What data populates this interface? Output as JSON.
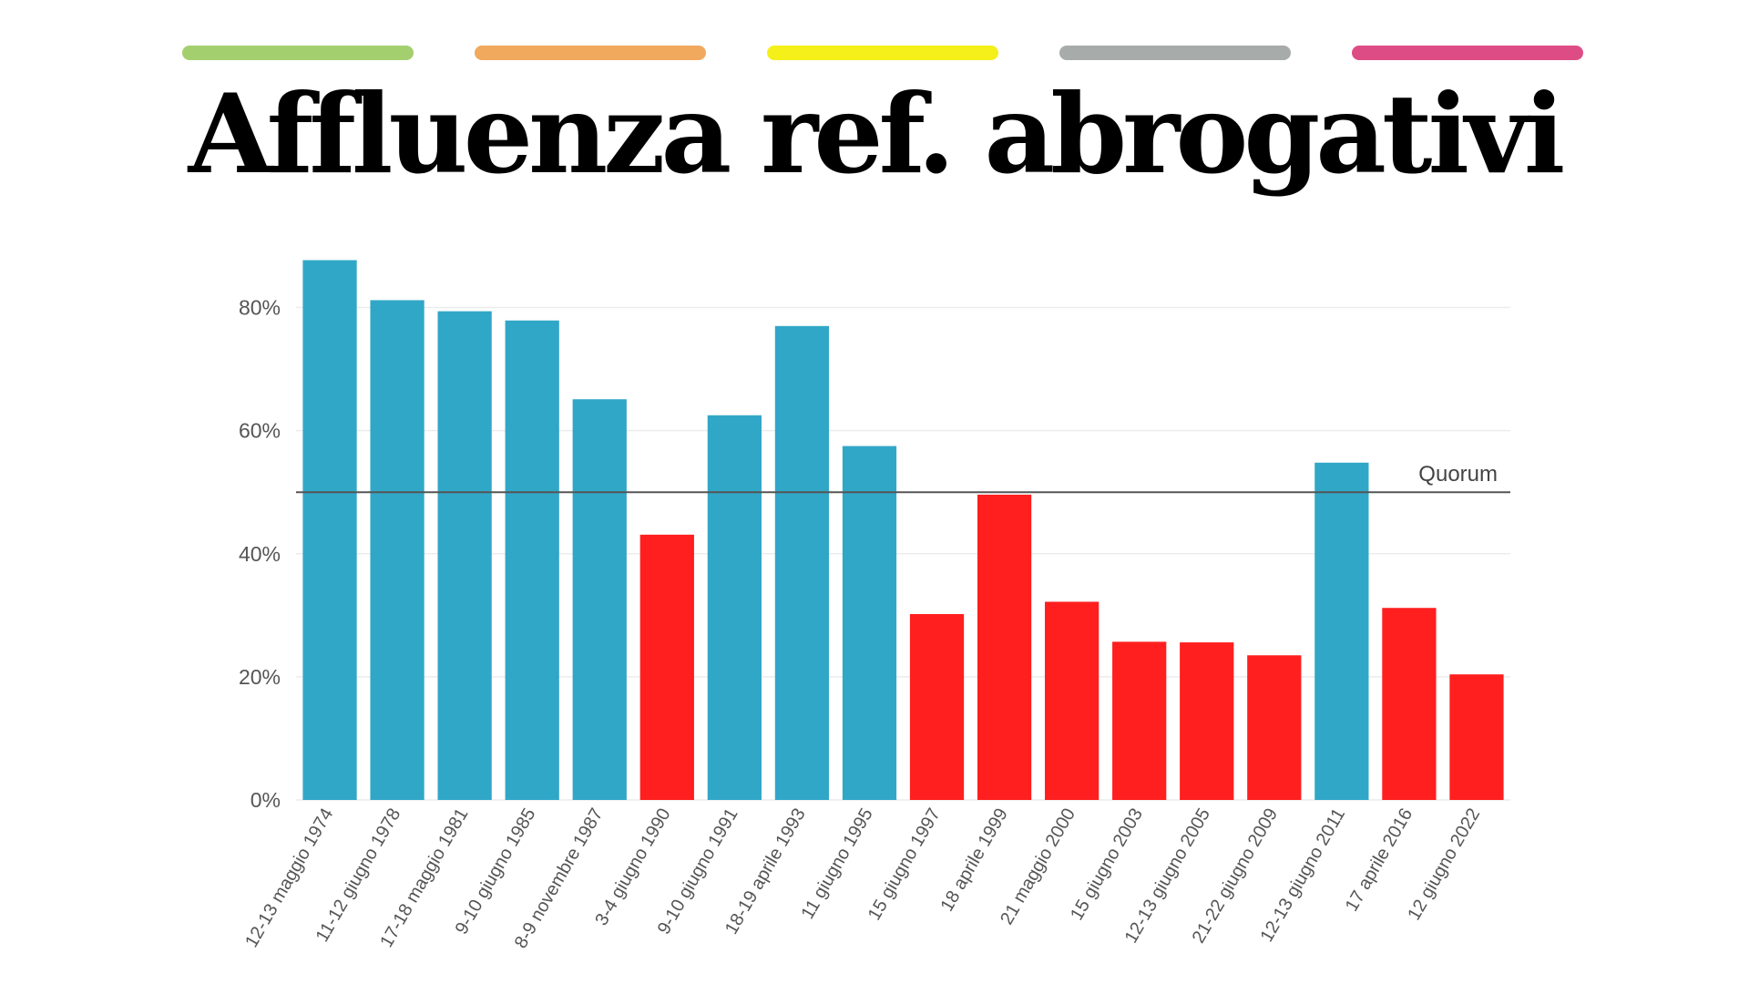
{
  "header": {
    "color_bars": [
      {
        "color": "#a4cf6f"
      },
      {
        "color": "#f0a95d"
      },
      {
        "color": "#f5ef1a"
      },
      {
        "color": "#a7aba9"
      },
      {
        "color": "#de4c85"
      }
    ]
  },
  "chart_data": {
    "type": "bar",
    "title": "Affluenza ref. abrogativi",
    "categories": [
      "12-13 maggio 1974",
      "11-12 giugno 1978",
      "17-18 maggio 1981",
      "9-10 giugno 1985",
      "8-9 novembre 1987",
      "3-4 giugno 1990",
      "9-10 giugno 1991",
      "18-19 aprile 1993",
      "11 giugno 1995",
      "15 giugno 1997",
      "18 aprile 1999",
      "21 maggio 2000",
      "15 giugno 2003",
      "12-13 giugno 2005",
      "21-22 giugno 2009",
      "12-13 giugno 2011",
      "17 aprile 2016",
      "12 giugno 2022"
    ],
    "values": [
      87.7,
      81.2,
      79.4,
      77.9,
      65.1,
      43.1,
      62.5,
      77.0,
      57.5,
      30.2,
      49.6,
      32.2,
      25.7,
      25.6,
      23.5,
      54.8,
      31.2,
      20.4
    ],
    "bar_colors": {
      "above_quorum": "#31a7c7",
      "below_quorum": "#ff1f1f"
    },
    "yticks": [
      0,
      20,
      40,
      60,
      80
    ],
    "ytick_labels": [
      "0%",
      "20%",
      "40%",
      "60%",
      "80%"
    ],
    "ylim": [
      0,
      90
    ],
    "grid": true,
    "reference_line": {
      "value": 50,
      "label": "Quorum",
      "color": "#555555"
    }
  }
}
